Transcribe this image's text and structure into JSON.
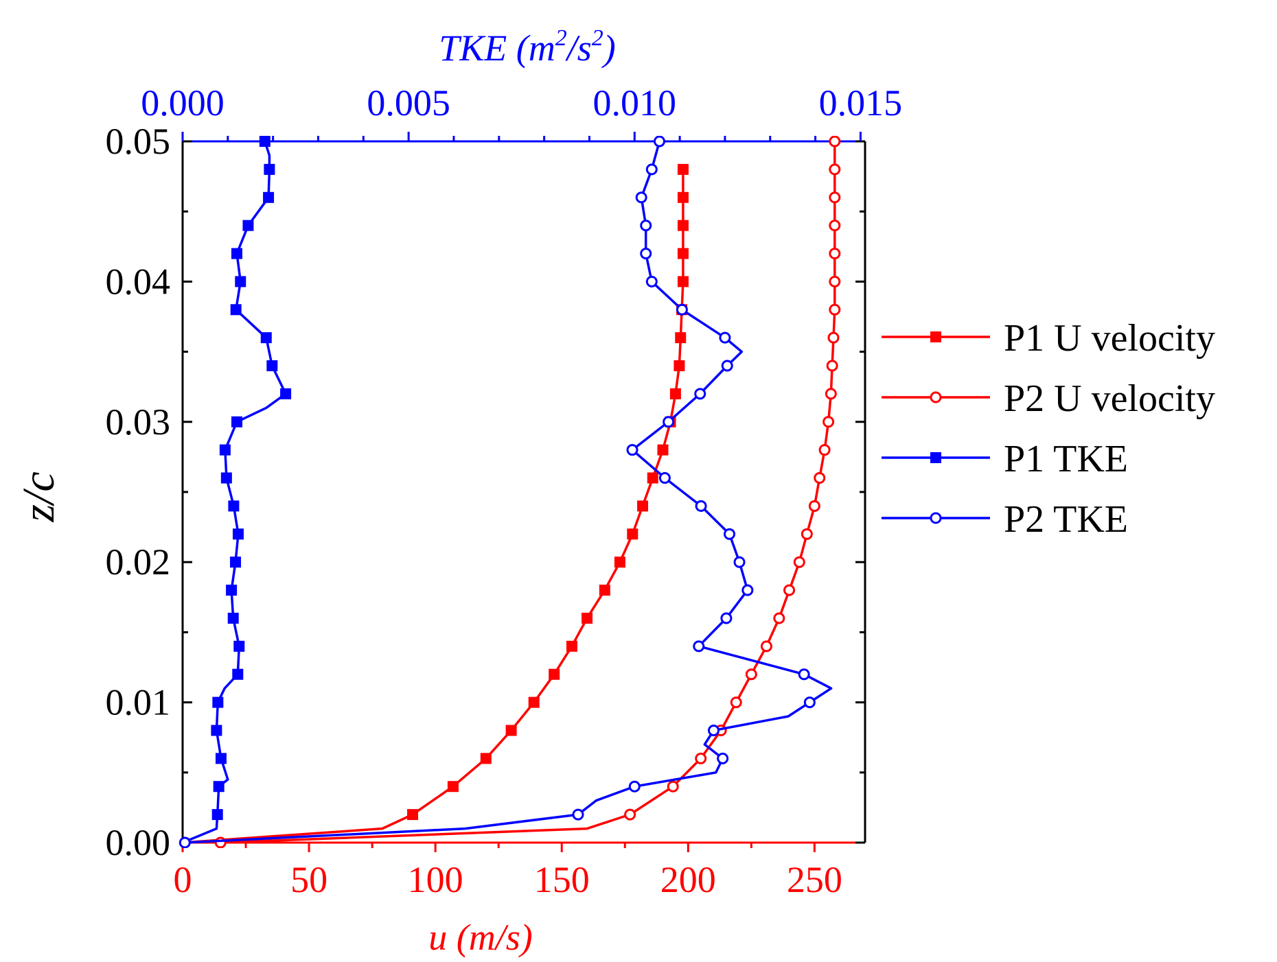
{
  "chart_data": {
    "type": "line",
    "title": "",
    "ylabel": "z/c",
    "ylim": [
      0,
      0.05
    ],
    "yticks": [
      "0.00",
      "0.01",
      "0.02",
      "0.03",
      "0.04",
      "0.05"
    ],
    "xlabel_bottom": "u (m/s)",
    "xlim_bottom": [
      0,
      270
    ],
    "xticks_bottom": [
      "0",
      "50",
      "100",
      "150",
      "200",
      "250"
    ],
    "xlabel_top": {
      "prefix": "TKE (m",
      "sup1": "2",
      "mid": "/s",
      "sup2": "2",
      "suffix": ")"
    },
    "xlim_top": [
      0,
      0.0151
    ],
    "xticks_top": [
      "0.000",
      "0.005",
      "0.010",
      "0.015"
    ],
    "colors": {
      "red": "#ff0000",
      "blue": "#0000ff",
      "black": "#000000"
    },
    "legend": {
      "placement": "right",
      "entries": [
        "P1 U velocity",
        "P2 U velocity",
        "P1 TKE",
        "P2 TKE"
      ]
    },
    "series": [
      {
        "name": "P1 U velocity",
        "axis": "bottom",
        "color": "#ff0000",
        "marker": "square-filled",
        "x": [
          0,
          79,
          91,
          107,
          120,
          130,
          139,
          147,
          154,
          160,
          167,
          173,
          178,
          182,
          186,
          190,
          193,
          195,
          196.5,
          197,
          197.5,
          198,
          198,
          198,
          198,
          198
        ],
        "y": [
          0.0,
          0.001,
          0.002,
          0.004,
          0.006,
          0.008,
          0.01,
          0.012,
          0.014,
          0.016,
          0.018,
          0.02,
          0.022,
          0.024,
          0.026,
          0.028,
          0.03,
          0.032,
          0.034,
          0.036,
          0.038,
          0.04,
          0.042,
          0.044,
          0.046,
          0.048
        ],
        "marker_y": [
          0.002,
          0.004,
          0.006,
          0.008,
          0.01,
          0.012,
          0.014,
          0.016,
          0.018,
          0.02,
          0.022,
          0.024,
          0.026,
          0.028,
          0.03,
          0.032,
          0.034,
          0.036,
          0.038,
          0.04,
          0.042,
          0.044,
          0.046,
          0.048
        ]
      },
      {
        "name": "P2 U velocity",
        "axis": "bottom",
        "color": "#ff0000",
        "marker": "circle-open",
        "x": [
          15,
          160,
          177,
          194,
          205,
          213,
          219,
          225,
          231,
          236,
          240,
          244,
          247,
          250,
          252,
          254,
          255.5,
          256.5,
          257,
          257.5,
          258,
          258,
          258,
          258,
          258,
          258,
          258
        ],
        "y": [
          0.0,
          0.001,
          0.002,
          0.004,
          0.006,
          0.008,
          0.01,
          0.012,
          0.014,
          0.016,
          0.018,
          0.02,
          0.022,
          0.024,
          0.026,
          0.028,
          0.03,
          0.032,
          0.034,
          0.036,
          0.038,
          0.04,
          0.042,
          0.044,
          0.046,
          0.048,
          0.05
        ],
        "marker_y": [
          0.0,
          0.002,
          0.004,
          0.006,
          0.008,
          0.01,
          0.012,
          0.014,
          0.016,
          0.018,
          0.02,
          0.022,
          0.024,
          0.026,
          0.028,
          0.03,
          0.032,
          0.034,
          0.036,
          0.038,
          0.04,
          0.042,
          0.044,
          0.046,
          0.048,
          0.05
        ]
      },
      {
        "name": "P1 TKE",
        "axis": "top",
        "color": "#0000ff",
        "marker": "square-filled",
        "x": [
          0.0,
          0.00075,
          0.00077,
          0.0008,
          0.001,
          0.00085,
          0.00075,
          0.00078,
          0.00093,
          0.00122,
          0.00125,
          0.00112,
          0.00108,
          0.00117,
          0.00123,
          0.00113,
          0.00097,
          0.00094,
          0.0012,
          0.00185,
          0.00228,
          0.00198,
          0.00185,
          0.00118,
          0.00128,
          0.0012,
          0.00145,
          0.0019,
          0.00192,
          0.00192,
          0.00182
        ],
        "y": [
          0.0,
          0.001,
          0.002,
          0.004,
          0.0045,
          0.006,
          0.008,
          0.01,
          0.011,
          0.012,
          0.014,
          0.016,
          0.018,
          0.02,
          0.022,
          0.024,
          0.026,
          0.028,
          0.03,
          0.031,
          0.032,
          0.034,
          0.036,
          0.038,
          0.04,
          0.042,
          0.044,
          0.046,
          0.048,
          0.049,
          0.05
        ],
        "marker_y": [
          0.002,
          0.004,
          0.006,
          0.008,
          0.01,
          0.012,
          0.014,
          0.016,
          0.018,
          0.02,
          0.022,
          0.024,
          0.026,
          0.028,
          0.03,
          0.032,
          0.034,
          0.036,
          0.038,
          0.04,
          0.042,
          0.044,
          0.046,
          0.048,
          0.05
        ]
      },
      {
        "name": "P2 TKE",
        "axis": "top",
        "color": "#0000ff",
        "marker": "circle-open",
        "x": [
          5e-05,
          0.00625,
          0.00875,
          0.00915,
          0.01,
          0.0118,
          0.01195,
          0.01155,
          0.01175,
          0.0134,
          0.01435,
          0.01375,
          0.01142,
          0.01203,
          0.0125,
          0.01232,
          0.0121,
          0.01147,
          0.01067,
          0.00995,
          0.01075,
          0.01145,
          0.01205,
          0.01237,
          0.012,
          0.01105,
          0.01038,
          0.01025,
          0.01025,
          0.01015,
          0.01038,
          0.01055
        ],
        "y": [
          0.0,
          0.001,
          0.002,
          0.003,
          0.004,
          0.005,
          0.006,
          0.007,
          0.008,
          0.009,
          0.011,
          0.012,
          0.014,
          0.016,
          0.018,
          0.02,
          0.022,
          0.024,
          0.026,
          0.028,
          0.03,
          0.032,
          0.034,
          0.035,
          0.036,
          0.038,
          0.04,
          0.042,
          0.044,
          0.046,
          0.048,
          0.05
        ],
        "marker_y": [
          0.0,
          0.002,
          0.004,
          0.006,
          0.008,
          0.01,
          0.012,
          0.014,
          0.016,
          0.018,
          0.02,
          0.022,
          0.024,
          0.026,
          0.028,
          0.03,
          0.032,
          0.034,
          0.036,
          0.038,
          0.04,
          0.042,
          0.044,
          0.046,
          0.048,
          0.05
        ]
      }
    ]
  }
}
